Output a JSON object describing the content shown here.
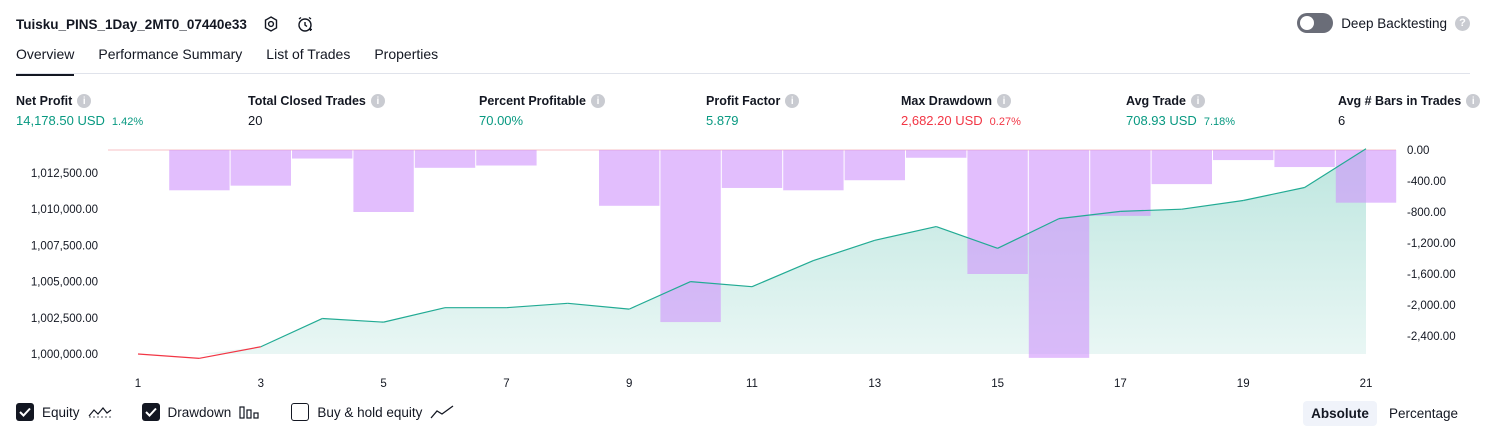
{
  "header": {
    "strategy_name": "Tuisku_PINS_1Day_2MT0_07440e33",
    "deep_backtesting_label": "Deep Backtesting"
  },
  "tabs": [
    "Overview",
    "Performance Summary",
    "List of Trades",
    "Properties"
  ],
  "metrics": [
    {
      "label": "Net Profit",
      "value": "14,178.50 USD",
      "sub": "1.42%",
      "tone": "pos"
    },
    {
      "label": "Total Closed Trades",
      "value": "20",
      "sub": "",
      "tone": "plain"
    },
    {
      "label": "Percent Profitable",
      "value": "70.00%",
      "sub": "",
      "tone": "pos"
    },
    {
      "label": "Profit Factor",
      "value": "5.879",
      "sub": "",
      "tone": "pos"
    },
    {
      "label": "Max Drawdown",
      "value": "2,682.20 USD",
      "sub": "0.27%",
      "tone": "neg"
    },
    {
      "label": "Avg Trade",
      "value": "708.93 USD",
      "sub": "7.18%",
      "tone": "pos"
    },
    {
      "label": "Avg # Bars in Trades",
      "value": "6",
      "sub": "",
      "tone": "plain"
    }
  ],
  "legend": {
    "equity": "Equity",
    "drawdown": "Drawdown",
    "buy_hold": "Buy & hold equity",
    "equity_checked": true,
    "drawdown_checked": true,
    "buy_hold_checked": false
  },
  "mode": {
    "absolute": "Absolute",
    "percentage": "Percentage",
    "selected": "Absolute"
  },
  "colors": {
    "equity_line": "#22ab94",
    "equity_below_start": "#f23645",
    "equity_fill": "#d6f0ea",
    "drawdown_bar": "#ce93fc",
    "positive": "#089981",
    "negative": "#f23645"
  },
  "chart_data": {
    "type": "area",
    "x_tick_labels": [
      "1",
      "3",
      "5",
      "7",
      "9",
      "11",
      "13",
      "15",
      "17",
      "19",
      "21"
    ],
    "left_axis": {
      "tick_labels": [
        "1,012,500.00",
        "1,010,000.00",
        "1,007,500.00",
        "1,005,000.00",
        "1,002,500.00",
        "1,000,000.00"
      ],
      "ticks": [
        1012500,
        1010000,
        1007500,
        1005000,
        1002500,
        1000000
      ]
    },
    "right_axis": {
      "tick_labels": [
        "0.00",
        "-400.00",
        "-800.00",
        "-1,200.00",
        "-1,600.00",
        "-2,000.00",
        "-2,400.00"
      ],
      "ticks": [
        0,
        -400,
        -800,
        -1200,
        -1600,
        -2000,
        -2400
      ]
    },
    "series": [
      {
        "name": "Equity",
        "type": "area",
        "x": [
          1,
          2,
          3,
          4,
          5,
          6,
          7,
          8,
          9,
          10,
          11,
          12,
          13,
          14,
          15,
          16,
          17,
          18,
          19,
          20,
          21
        ],
        "values": [
          1000000,
          999700,
          1000500,
          1002450,
          1002200,
          1003200,
          1003200,
          1003500,
          1003100,
          1005000,
          1004650,
          1006450,
          1007850,
          1008800,
          1007300,
          1009350,
          1009850,
          1010000,
          1010600,
          1011500,
          1014178.5
        ]
      },
      {
        "name": "Drawdown",
        "type": "bar",
        "x": [
          1,
          2,
          3,
          4,
          5,
          6,
          7,
          8,
          9,
          10,
          11,
          12,
          13,
          14,
          15,
          16,
          17,
          18,
          19,
          20,
          21
        ],
        "values": [
          0,
          -520,
          -460,
          -110,
          -800,
          -230,
          -200,
          0,
          -720,
          -2220,
          -490,
          -520,
          -390,
          -100,
          -1600,
          -2682.2,
          -850,
          -440,
          -130,
          -220,
          -680
        ]
      }
    ]
  }
}
